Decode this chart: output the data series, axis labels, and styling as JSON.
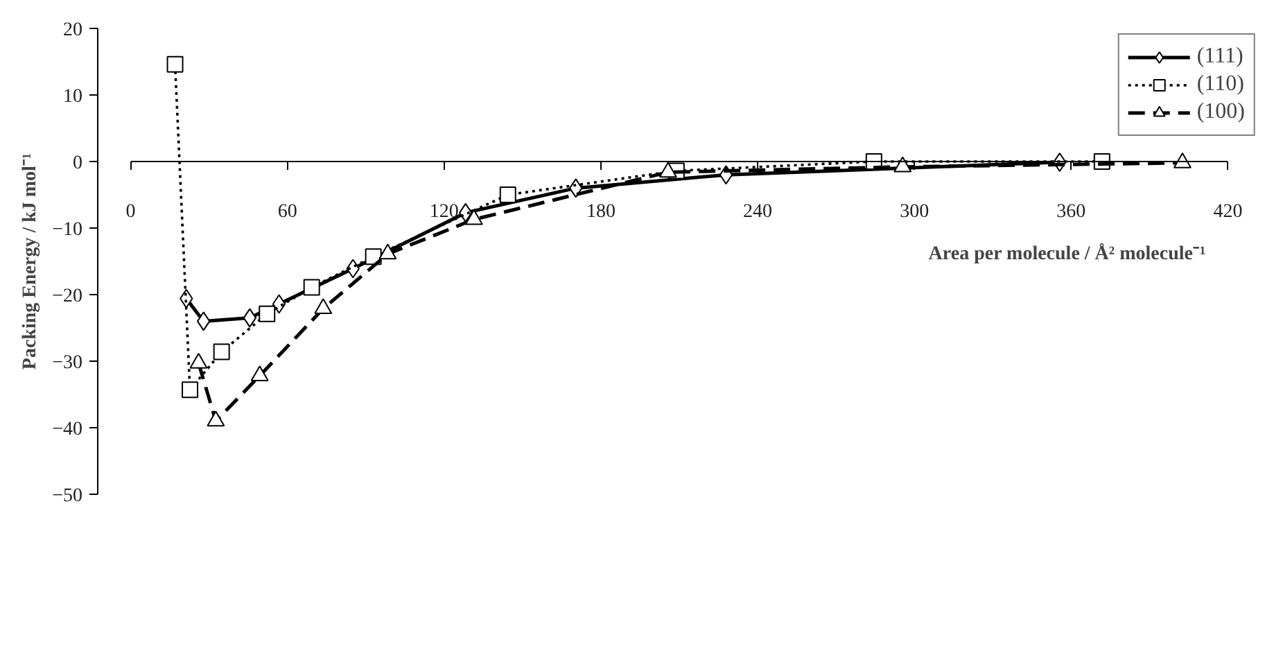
{
  "chart_data": {
    "type": "line",
    "xlabel": "Area per molecule / Å² molecule⁻¹",
    "ylabel": "Packing Energy / kJ mol⁻¹",
    "xlim": [
      0,
      420
    ],
    "xticks": [
      0,
      60,
      120,
      180,
      240,
      300,
      360,
      420
    ],
    "ylim": [
      -50,
      20
    ],
    "yticks": [
      -50,
      -40,
      -30,
      -20,
      -10,
      0,
      10,
      20
    ],
    "grid": false,
    "legend": "top right",
    "series": [
      {
        "name": "(111)",
        "color": "#000000",
        "marker": "diamond",
        "line_style": "solid",
        "x": [
          21.3,
          27.9,
          45.6,
          56.8,
          85.1,
          128.2,
          170.4,
          227.9,
          355.6
        ],
        "values": [
          -20.6,
          -24.0,
          -23.5,
          -21.4,
          -16.1,
          -7.7,
          -4.0,
          -2.0,
          -0.1
        ]
      },
      {
        "name": "(110)",
        "color": "#000000",
        "marker": "square",
        "line_style": "dotted",
        "x": [
          17.0,
          22.7,
          34.8,
          52.2,
          69.3,
          92.9,
          144.4,
          208.9,
          284.5,
          371.8
        ],
        "values": [
          14.6,
          -34.3,
          -28.6,
          -22.9,
          -18.9,
          -14.3,
          -5.0,
          -1.4,
          0,
          0
        ]
      },
      {
        "name": "(100)",
        "color": "#000000",
        "marker": "triangle",
        "line_style": "dashed",
        "x": [
          26.0,
          32.6,
          49.4,
          73.7,
          98.4,
          131.4,
          205.7,
          295.5,
          402.6
        ],
        "values": [
          -30.3,
          -39.0,
          -32.2,
          -22.1,
          -13.9,
          -8.7,
          -1.6,
          -0.8,
          -0.2
        ]
      }
    ]
  }
}
